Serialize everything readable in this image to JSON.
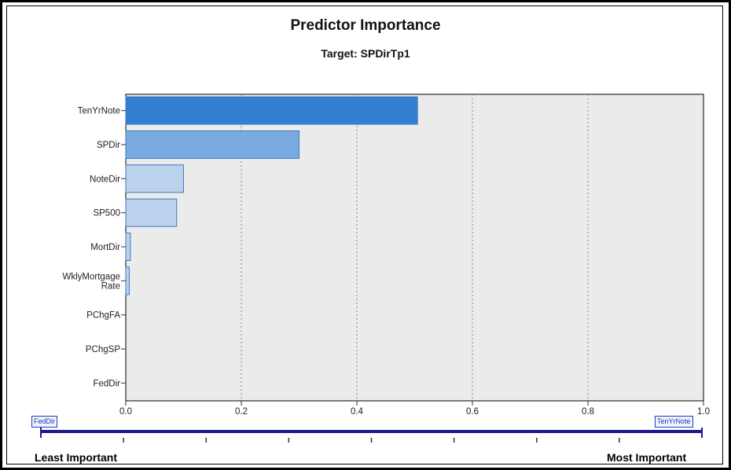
{
  "chart_data": {
    "type": "bar",
    "orientation": "horizontal",
    "title": "Predictor Importance",
    "subtitle": "Target: SPDirTp1",
    "categories": [
      "TenYrNote",
      "SPDir",
      "NoteDir",
      "SP500",
      "MortDir",
      "WklyMortgage Rate",
      "PChgFA",
      "PChgSP",
      "FedDir"
    ],
    "values": [
      0.505,
      0.3,
      0.1,
      0.088,
      0.008,
      0.006,
      0,
      0,
      0
    ],
    "xlim": [
      0.0,
      1.0
    ],
    "xticks": [
      "0.0",
      "0.2",
      "0.4",
      "0.6",
      "0.8",
      "1.0"
    ],
    "grid": "vertical dotted",
    "colors": {
      "plot_background": "#ebebeb",
      "bar_dark": "#3380d0",
      "bar_mid": "#7aaae0",
      "bar_light": "#bcd2ec",
      "bar_border": "#3b78c4"
    }
  },
  "slider": {
    "min_label": "FedDir",
    "max_label": "TenYrNote",
    "least_label": "Least Important",
    "most_label": "Most Important"
  }
}
